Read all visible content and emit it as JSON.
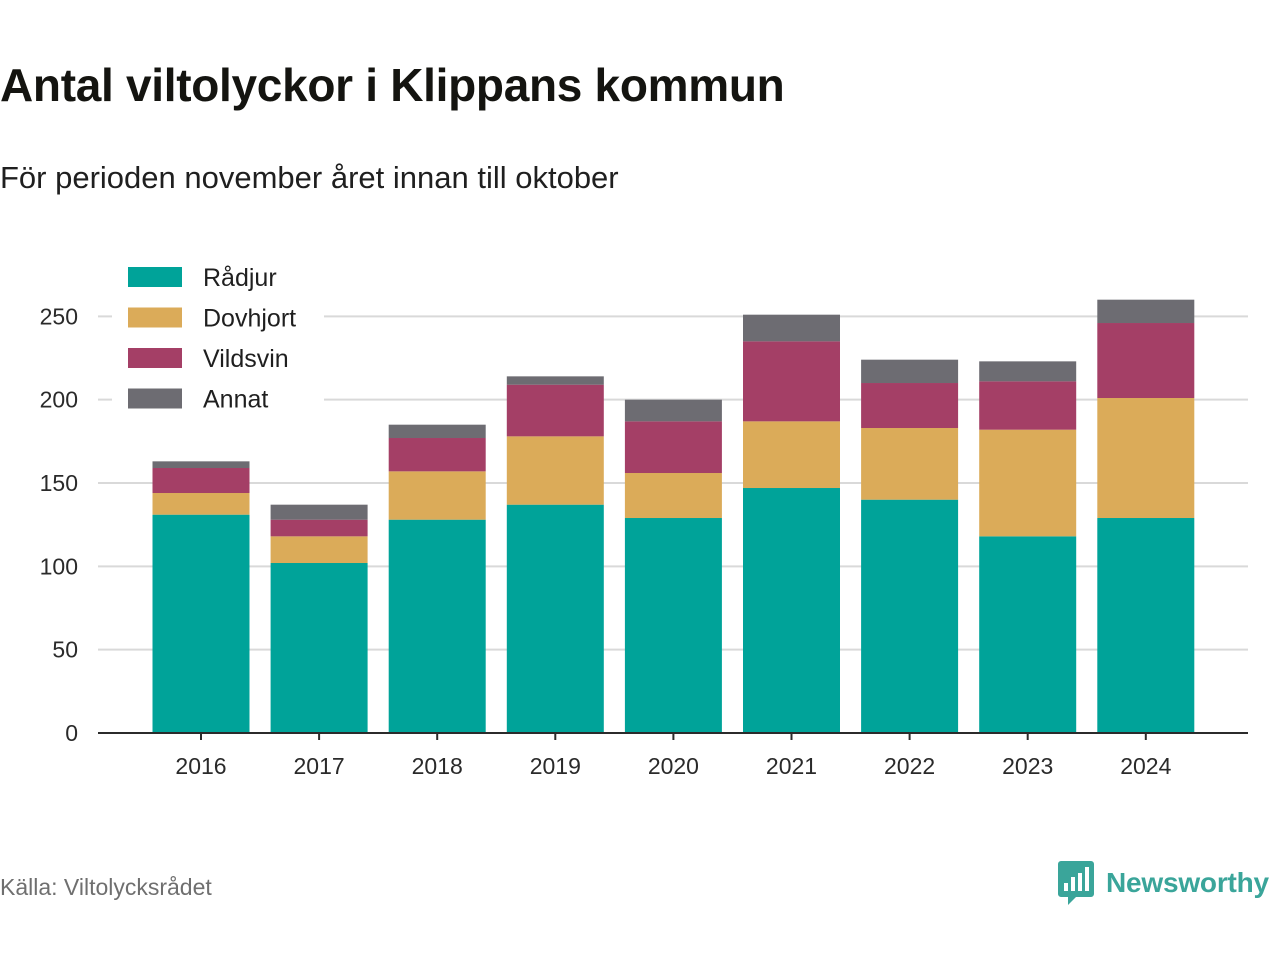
{
  "header": {
    "title": "Antal viltolyckor i Klippans kommun",
    "subtitle": "För perioden november året innan till oktober"
  },
  "footer": {
    "source": "Källa: Viltolycksrådet",
    "brand": "Newsworthy",
    "brand_icon": "bar-chart-speech-bubble-icon",
    "brand_color": "#3aa59a"
  },
  "chart_data": {
    "type": "bar",
    "stacked": true,
    "categories": [
      "2016",
      "2017",
      "2018",
      "2019",
      "2020",
      "2021",
      "2022",
      "2023",
      "2024"
    ],
    "series": [
      {
        "name": "Rådjur",
        "color": "#00a399",
        "values": [
          131,
          102,
          128,
          137,
          129,
          147,
          140,
          118,
          129
        ]
      },
      {
        "name": "Dovhjort",
        "color": "#dbab59",
        "values": [
          13,
          16,
          29,
          41,
          27,
          40,
          43,
          64,
          72
        ]
      },
      {
        "name": "Vildsvin",
        "color": "#a43f66",
        "values": [
          15,
          10,
          20,
          31,
          31,
          48,
          27,
          29,
          45
        ]
      },
      {
        "name": "Annat",
        "color": "#6d6c72",
        "values": [
          4,
          9,
          8,
          5,
          13,
          16,
          14,
          12,
          14
        ]
      }
    ],
    "ylim": [
      0,
      260
    ],
    "yticks": [
      0,
      50,
      100,
      150,
      200,
      250
    ],
    "xlabel": "",
    "ylabel": "",
    "grid": true,
    "legend": "top-left"
  }
}
